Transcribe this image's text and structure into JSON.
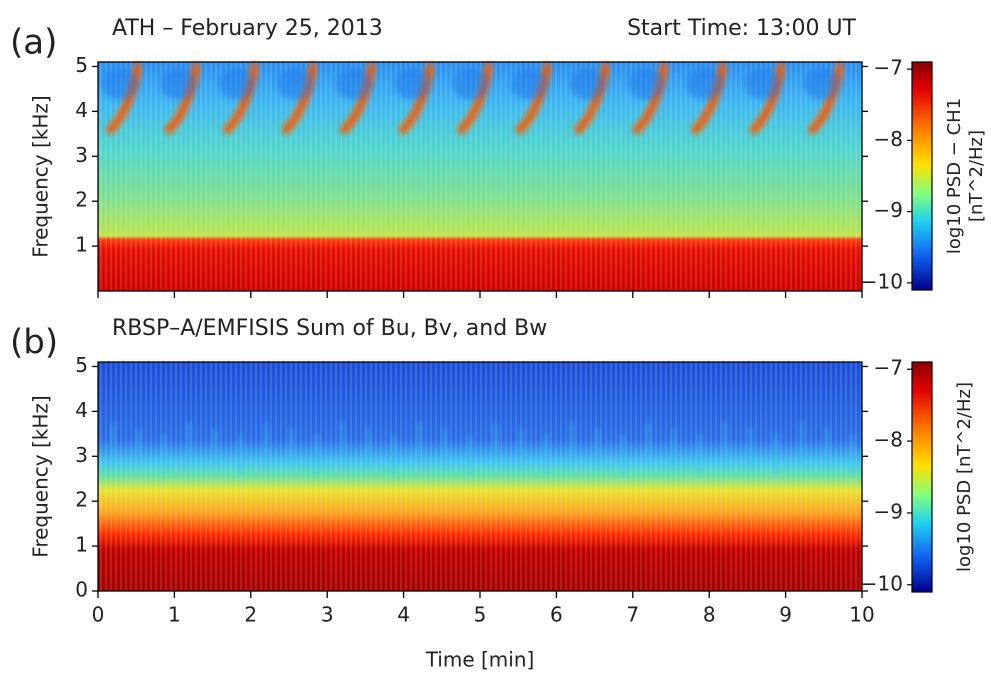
{
  "chart_data": [
    {
      "type": "spectrogram",
      "panel_label": "(a)",
      "title": "ATH – February 25, 2013",
      "subtitle": "Start Time: 13:00 UT",
      "ylabel": "Frequency [kHz]",
      "xlim": [
        0,
        10
      ],
      "xticks": [
        0,
        1,
        2,
        3,
        4,
        5,
        6,
        7,
        8,
        9,
        10
      ],
      "xticklabels": false,
      "ylim": [
        0,
        5.1
      ],
      "yticks": [
        1,
        2,
        3,
        4,
        5
      ],
      "colorbar": {
        "label_lines": [
          "log10 PSD − CH1",
          "[nT^2/Hz]"
        ],
        "colormap": "jet",
        "lim": [
          -10.1,
          -6.9
        ],
        "ticks": [
          {
            "value": -7,
            "label": "−7"
          },
          {
            "value": -8,
            "label": "−8"
          },
          {
            "value": -9,
            "label": "−9"
          },
          {
            "value": -10,
            "label": "−10"
          }
        ]
      }
    },
    {
      "type": "spectrogram",
      "panel_label": "(b)",
      "title": "RBSP–A/EMFISIS Sum of Bu, Bv, and Bw",
      "ylabel": "Frequency [kHz]",
      "xlabel": "Time [min]",
      "xlim": [
        0,
        10
      ],
      "xticks": [
        0,
        1,
        2,
        3,
        4,
        5,
        6,
        7,
        8,
        9,
        10
      ],
      "xticklabels": true,
      "ylim": [
        0,
        5.1
      ],
      "yticks": [
        0,
        1,
        2,
        3,
        4,
        5
      ],
      "colorbar": {
        "label_lines": [
          "log10 PSD  [nT^2/Hz]"
        ],
        "colormap": "jet",
        "lim": [
          -10.1,
          -6.9
        ],
        "ticks": [
          {
            "value": -7,
            "label": "−7"
          },
          {
            "value": -8,
            "label": "−8"
          },
          {
            "value": -9,
            "label": "−9"
          },
          {
            "value": -10,
            "label": "−10"
          }
        ]
      }
    }
  ]
}
